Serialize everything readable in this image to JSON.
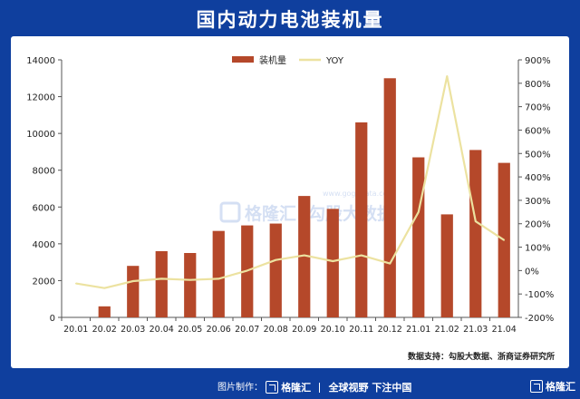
{
  "page": {
    "title": "国内动力电池装机量"
  },
  "source_text": "数据支持：勾股大数据、浙商证券研究所",
  "watermark": {
    "left": "格隆汇",
    "right": "勾股大数据",
    "url": "www.gogudata.com"
  },
  "footer": {
    "made_by": "图片制作：",
    "brand": "格隆汇",
    "slogan": "全球视野 下注中国",
    "right_brand": "格隆汇"
  },
  "colors": {
    "bar": "#b5482a",
    "line": "#ece2a0",
    "background": "#0f3f9e"
  },
  "chart_data": {
    "type": "bar",
    "categories": [
      "20.01",
      "20.02",
      "20.03",
      "20.04",
      "20.05",
      "20.06",
      "20.07",
      "20.08",
      "20.09",
      "20.10",
      "20.11",
      "20.12",
      "21.01",
      "21.02",
      "21.03",
      "21.04"
    ],
    "series": [
      {
        "name": "装机量",
        "type": "bar",
        "axis": "left",
        "values": [
          0,
          600,
          2800,
          3600,
          3500,
          4700,
          5000,
          5100,
          6600,
          5900,
          10600,
          13000,
          8700,
          5600,
          9100,
          8400
        ]
      },
      {
        "name": "YOY",
        "type": "line",
        "axis": "right",
        "values": [
          -55,
          -75,
          -45,
          -35,
          -40,
          -35,
          0,
          45,
          65,
          40,
          65,
          30,
          250,
          830,
          210,
          130
        ]
      }
    ],
    "y_left": {
      "min": 0,
      "max": 14000,
      "ticks": [
        0,
        2000,
        4000,
        6000,
        8000,
        10000,
        12000,
        14000
      ]
    },
    "y_right": {
      "min": -200,
      "max": 900,
      "ticks": [
        "-200%",
        "-100%",
        "0%",
        "100%",
        "200%",
        "300%",
        "400%",
        "500%",
        "600%",
        "700%",
        "800%",
        "900%"
      ]
    },
    "legend_placement": "top-center",
    "grid": false
  }
}
